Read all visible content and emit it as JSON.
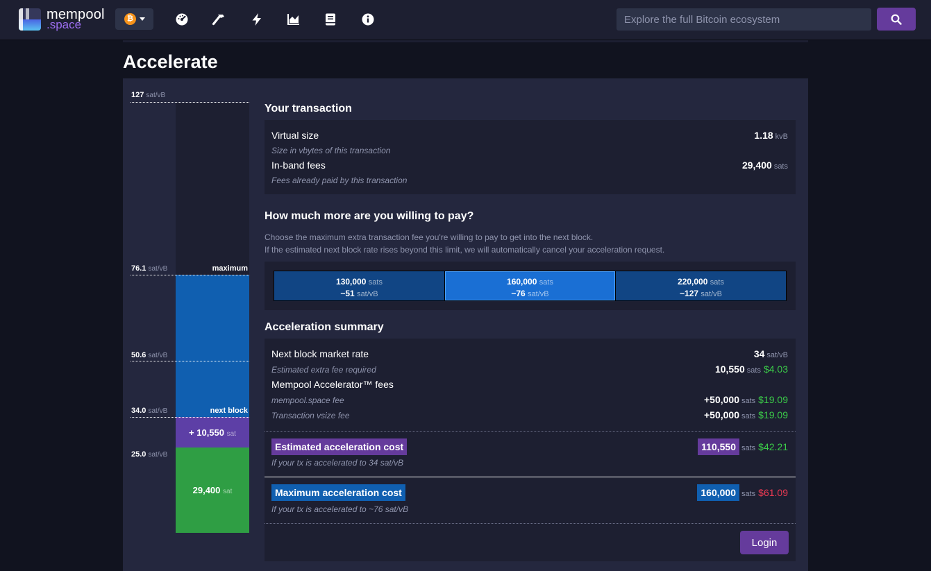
{
  "nav": {
    "brand_top": "mempool",
    "brand_bottom": ".space",
    "network_glyph": "₿",
    "icons": [
      "dashboard-icon",
      "hammer-icon",
      "lightning-icon",
      "chart-icon",
      "docs-icon",
      "info-icon"
    ],
    "search_placeholder": "Explore the full Bitcoin ecosystem"
  },
  "page": {
    "title": "Accelerate"
  },
  "feebar": {
    "unit": "sat/vB",
    "levels": [
      {
        "rate": "127"
      },
      {
        "rate": "76.1",
        "marker": "maximum"
      },
      {
        "rate": "50.6"
      },
      {
        "rate": "34.0",
        "marker": "next block"
      },
      {
        "rate": "25.0"
      }
    ],
    "extra_label": "+ 10,550",
    "extra_unit": "sat",
    "paid_label": "29,400",
    "paid_unit": "sat"
  },
  "transaction": {
    "title": "Your transaction",
    "vsize_label": "Virtual size",
    "vsize_desc": "Size in vbytes of this transaction",
    "vsize_value": "1.18",
    "vsize_unit": "kvB",
    "fees_label": "In-band fees",
    "fees_desc": "Fees already paid by this transaction",
    "fees_value": "29,400",
    "fees_unit": "sats"
  },
  "willing": {
    "title": "How much more are you willing to pay?",
    "line1": "Choose the maximum extra transaction fee you're willing to pay to get into the next block.",
    "line2": "If the estimated next block rate rises beyond this limit, we will automatically cancel your acceleration request.",
    "options": [
      {
        "amount": "130,000",
        "unit": "sats",
        "rate": "~51",
        "rate_unit": "sat/vB"
      },
      {
        "amount": "160,000",
        "unit": "sats",
        "rate": "~76",
        "rate_unit": "sat/vB"
      },
      {
        "amount": "220,000",
        "unit": "sats",
        "rate": "~127",
        "rate_unit": "sat/vB"
      }
    ]
  },
  "summary": {
    "title": "Acceleration summary",
    "next_rate_label": "Next block market rate",
    "next_rate_value": "34",
    "next_rate_unit": "sat/vB",
    "extra_label": "Estimated extra fee required",
    "extra_value": "10,550",
    "extra_unit": "sats",
    "extra_usd": "$4.03",
    "accel_fees_label": "Mempool Accelerator™ fees",
    "mempool_fee_label": "mempool.space fee",
    "mempool_fee_value": "+50,000",
    "mempool_fee_unit": "sats",
    "mempool_fee_usd": "$19.09",
    "vsize_fee_label": "Transaction vsize fee",
    "vsize_fee_value": "+50,000",
    "vsize_fee_unit": "sats",
    "vsize_fee_usd": "$19.09",
    "est_cost_label": "Estimated acceleration cost",
    "est_cost_desc": "If your tx is accelerated to 34 sat/vB",
    "est_cost_value": "110,550",
    "est_cost_unit": "sats",
    "est_cost_usd": "$42.21",
    "max_cost_label": "Maximum acceleration cost",
    "max_cost_desc": "If your tx is accelerated to ~76 sat/vB",
    "max_cost_value": "160,000",
    "max_cost_unit": "sats",
    "max_cost_usd": "$61.09",
    "login_label": "Login"
  },
  "colors": {
    "background": "#11131f",
    "panel": "#24273e",
    "box": "#1d1f31",
    "accent_purple": "#653b9c",
    "accent_blue": "#105fb0",
    "paid_green": "#2f9e44",
    "usd_green": "#3bcc49",
    "usd_red": "#ee3a53"
  }
}
